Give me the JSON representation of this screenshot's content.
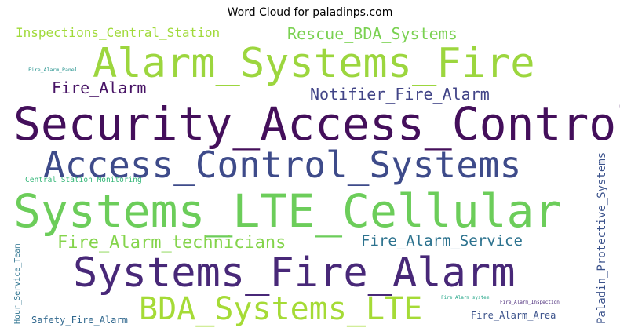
{
  "chart_data": {
    "type": "wordcloud",
    "title": "Word Cloud for paladinps.com",
    "colormap": "viridis",
    "background": "#ffffff",
    "words": [
      {
        "text": "Security_Access_Control",
        "weight": 1.0,
        "color": "#440f5b"
      },
      {
        "text": "Systems_LTE_Cellular",
        "weight": 0.98,
        "color": "#6ccd5a"
      },
      {
        "text": "Alarm_Systems_Fire",
        "weight": 0.88,
        "color": "#9cd63e"
      },
      {
        "text": "Systems_Fire_Alarm",
        "weight": 0.86,
        "color": "#482878"
      },
      {
        "text": "Access_Control_Systems",
        "weight": 0.8,
        "color": "#3e4b8a"
      },
      {
        "text": "BDA_Systems_LTE",
        "weight": 0.7,
        "color": "#a5db36"
      },
      {
        "text": "Fire_Alarm_technicians",
        "weight": 0.35,
        "color": "#84d44b"
      },
      {
        "text": "Rescue_BDA_Systems",
        "weight": 0.33,
        "color": "#7ad151"
      },
      {
        "text": "Notifier_Fire_Alarm",
        "weight": 0.33,
        "color": "#414487"
      },
      {
        "text": "Fire_Alarm_Service",
        "weight": 0.31,
        "color": "#2c728e"
      },
      {
        "text": "Fire_Alarm",
        "weight": 0.3,
        "color": "#471365"
      },
      {
        "text": "Inspections_Central_Station",
        "weight": 0.28,
        "color": "#a0da39"
      },
      {
        "text": "Paladin_Protective_Systems",
        "weight": 0.22,
        "color": "#3b528b"
      },
      {
        "text": "Fire_Alarm_Area",
        "weight": 0.18,
        "color": "#3b528b"
      },
      {
        "text": "Safety_Fire_Alarm",
        "weight": 0.17,
        "color": "#31688e"
      },
      {
        "text": "Hour_Service_Team",
        "weight": 0.15,
        "color": "#2c728e"
      },
      {
        "text": "Central_Station_Monitoring",
        "weight": 0.12,
        "color": "#35b779"
      },
      {
        "text": "Fire_Alarm_Panel",
        "weight": 0.07,
        "color": "#21918c"
      },
      {
        "text": "Fire_Alarm_system",
        "weight": 0.06,
        "color": "#20a486"
      },
      {
        "text": "Fire_Alarm_Inspection",
        "weight": 0.06,
        "color": "#482878"
      }
    ]
  }
}
